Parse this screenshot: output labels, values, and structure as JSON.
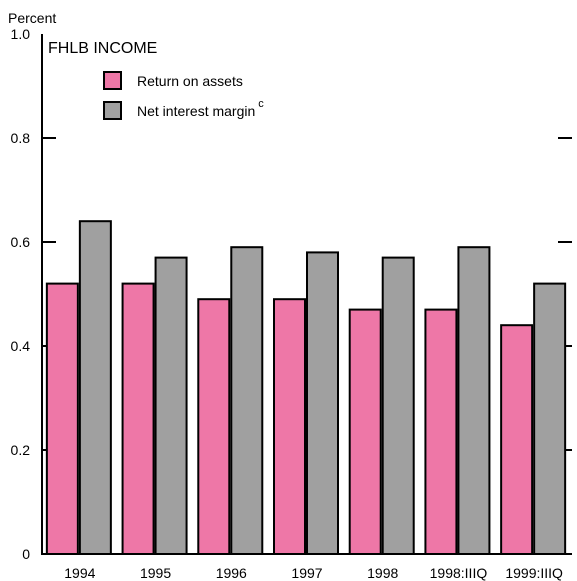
{
  "chart_data": {
    "type": "bar",
    "title": "FHLB INCOME",
    "ylabel": "Percent",
    "xlabel": "",
    "ylim": [
      0,
      1.0
    ],
    "yticks": [
      "0",
      "0.2",
      "0.4",
      "0.6",
      "0.8",
      "1.0"
    ],
    "ytick_values": [
      0,
      0.2,
      0.4,
      0.6,
      0.8,
      1.0
    ],
    "grid": false,
    "legend_position": "top-left",
    "categories": [
      "1994",
      "1995",
      "1996",
      "1997",
      "1998",
      "1998:IIIQ",
      "1999:IIIQ"
    ],
    "series": [
      {
        "name": "Return on assets",
        "superscript": "",
        "color": "#ee77a7",
        "values": [
          0.52,
          0.52,
          0.49,
          0.49,
          0.47,
          0.47,
          0.44
        ]
      },
      {
        "name": "Net interest margin",
        "superscript": "c",
        "color": "#a0a0a0",
        "values": [
          0.64,
          0.57,
          0.59,
          0.58,
          0.57,
          0.59,
          0.52
        ]
      }
    ]
  }
}
